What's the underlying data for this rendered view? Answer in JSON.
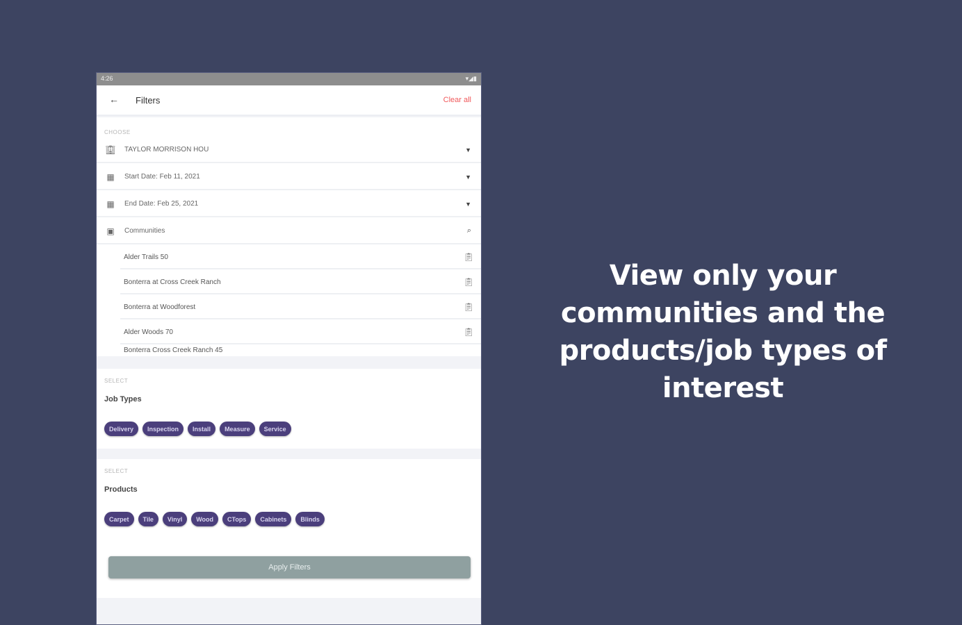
{
  "status_bar": {
    "time": "4:26",
    "icons_right": "▾◢▮"
  },
  "header": {
    "back_icon": "arrow-left-icon",
    "title": "Filters",
    "clear_all": "Clear all"
  },
  "choose_section": {
    "label": "CHOOSE",
    "builder": "TAYLOR MORRISON HOU",
    "start_date": "Start Date: Feb 11, 2021",
    "end_date": "End Date: Feb 25, 2021",
    "communities_placeholder": "Communities"
  },
  "communities": [
    "Alder Trails 50",
    "Bonterra at Cross Creek Ranch",
    "Bonterra at Woodforest",
    "Alder Woods 70",
    "Bonterra Cross Creek Ranch 45"
  ],
  "job_types": {
    "label": "SELECT",
    "title": "Job Types",
    "chips": [
      "Delivery",
      "Inspection",
      "Install",
      "Measure",
      "Service"
    ]
  },
  "products": {
    "label": "SELECT",
    "title": "Products",
    "chips": [
      "Carpet",
      "Tile",
      "Vinyl",
      "Wood",
      "CTops",
      "Cabinets",
      "Blinds"
    ]
  },
  "apply_button": "Apply Filters",
  "tagline": "View only your communities and the products/job types of interest",
  "colors": {
    "background": "#3d4461",
    "chip": "#4b3f7c",
    "clear_all": "#f0585a",
    "apply": "#8fa0a0"
  }
}
